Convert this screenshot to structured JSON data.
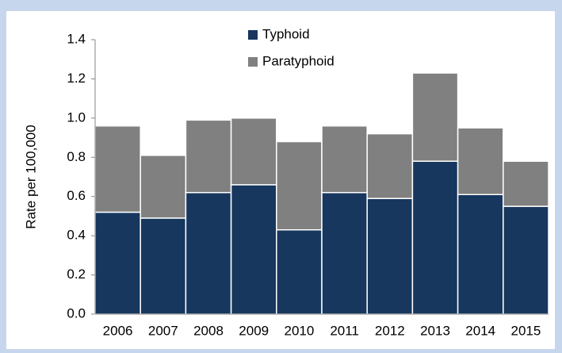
{
  "chart_data": {
    "type": "stacked-bar",
    "categories": [
      "2006",
      "2007",
      "2008",
      "2009",
      "2010",
      "2011",
      "2012",
      "2013",
      "2014",
      "2015"
    ],
    "series": [
      {
        "name": "Typhoid",
        "color": "#17375e",
        "values": [
          0.52,
          0.49,
          0.62,
          0.66,
          0.43,
          0.62,
          0.59,
          0.78,
          0.61,
          0.55
        ]
      },
      {
        "name": "Paratyphoid",
        "color": "#808080",
        "values": [
          0.44,
          0.32,
          0.37,
          0.34,
          0.45,
          0.34,
          0.33,
          0.45,
          0.34,
          0.23
        ]
      }
    ],
    "ylabel": "Rate per 100,000",
    "ylim": [
      0,
      1.4
    ],
    "yticks": [
      {
        "value": 0,
        "label": "0.0"
      },
      0.2,
      0.4,
      0.6,
      0.8,
      {
        "value": 1,
        "label": "1.0"
      },
      1.2,
      1.4
    ],
    "grid": false
  }
}
